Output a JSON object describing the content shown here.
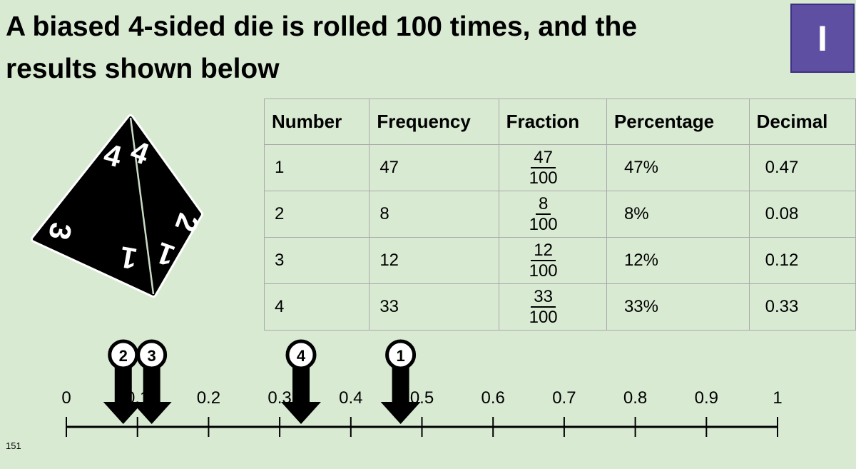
{
  "header": {
    "title_line1": "A biased 4-sided die is rolled 100 times, and the",
    "title_line2": "results shown below",
    "badge": "I"
  },
  "die": {
    "labels": [
      "4",
      "4",
      "3",
      "1",
      "2",
      "1"
    ]
  },
  "table": {
    "headers": [
      "Number",
      "Frequency",
      "Fraction",
      "Percentage",
      "Decimal"
    ],
    "rows": [
      {
        "number": "1",
        "frequency": "47",
        "numerator": "47",
        "denominator": "100",
        "percentage": "47%",
        "decimal": "0.47"
      },
      {
        "number": "2",
        "frequency": "8",
        "numerator": "8",
        "denominator": "100",
        "percentage": "8%",
        "decimal": "0.08"
      },
      {
        "number": "3",
        "frequency": "12",
        "numerator": "12",
        "denominator": "100",
        "percentage": "12%",
        "decimal": "0.12"
      },
      {
        "number": "4",
        "frequency": "33",
        "numerator": "33",
        "denominator": "100",
        "percentage": "33%",
        "decimal": "0.33"
      }
    ]
  },
  "number_line": {
    "xlim": [
      0,
      1
    ],
    "xticks": [
      0,
      0.1,
      0.2,
      0.3,
      0.4,
      0.5,
      0.6,
      0.7,
      0.8,
      0.9,
      1
    ],
    "markers": [
      {
        "label": "2",
        "value": 0.08
      },
      {
        "label": "3",
        "value": 0.12
      },
      {
        "label": "4",
        "value": 0.33
      },
      {
        "label": "1",
        "value": 0.47
      }
    ]
  },
  "footer": {
    "page_number": "151"
  }
}
